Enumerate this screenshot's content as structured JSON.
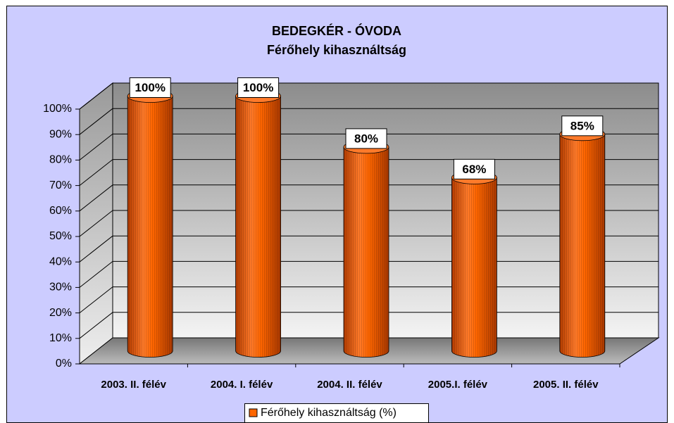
{
  "chart_data": {
    "type": "cylinder",
    "title": "BEDEGKÉR - ÓVODA",
    "subtitle": "Férőhely kihasználtság",
    "categories": [
      "2003. II. félév",
      "2004. I. félév",
      "2004. II. félév",
      "2005.I. félév",
      "2005. II. félév"
    ],
    "series": [
      {
        "name": "Férőhely kihasználtság (%)",
        "color": "#ff6600",
        "values": [
          100,
          100,
          80,
          68,
          85
        ],
        "value_labels": [
          "100%",
          "100%",
          "80%",
          "68%",
          "85%"
        ]
      }
    ],
    "ylim": [
      0,
      100
    ],
    "yticks": [
      {
        "value": 0,
        "label": "0%"
      },
      {
        "value": 10,
        "label": "10%"
      },
      {
        "value": 20,
        "label": "20%"
      },
      {
        "value": 30,
        "label": "30%"
      },
      {
        "value": 40,
        "label": "40%"
      },
      {
        "value": 50,
        "label": "50%"
      },
      {
        "value": 60,
        "label": "60%"
      },
      {
        "value": 70,
        "label": "70%"
      },
      {
        "value": 80,
        "label": "80%"
      },
      {
        "value": 90,
        "label": "90%"
      },
      {
        "value": 100,
        "label": "100%"
      }
    ],
    "grid": true,
    "legend": "bottom"
  }
}
